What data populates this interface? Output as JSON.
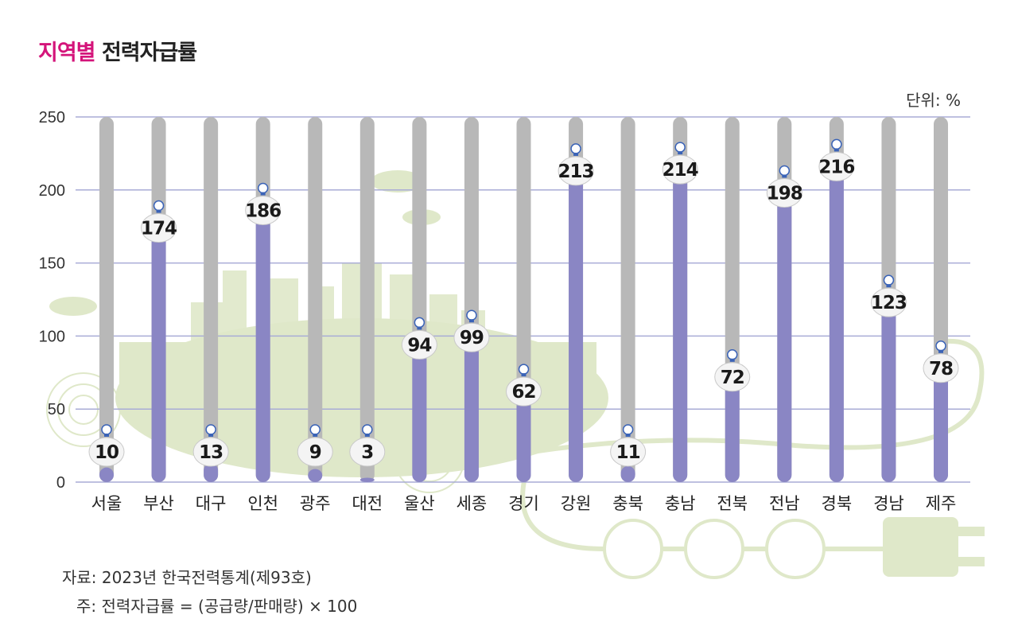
{
  "title_prefix": "지역별",
  "title_main": "전력자급률",
  "unit_label": "단위: %",
  "notes": {
    "source": "자료: 2023년 한국전력통계(제93호)",
    "formula": "주: 전력자급률 = (공급량/판매량) × 100"
  },
  "colors": {
    "accent": "#d4147a",
    "bar_fill": "#8a86c4",
    "bar_track": "#b8b8b8",
    "grid": "#a9acd6",
    "background_art": "#dfe8c9"
  },
  "chart_data": {
    "type": "bar",
    "categories": [
      "서울",
      "부산",
      "대구",
      "인천",
      "광주",
      "대전",
      "울산",
      "세종",
      "경기",
      "강원",
      "충북",
      "충남",
      "전북",
      "전남",
      "경북",
      "경남",
      "제주"
    ],
    "values": [
      10,
      174,
      13,
      186,
      9,
      3,
      94,
      99,
      62,
      213,
      11,
      214,
      72,
      198,
      216,
      123,
      78
    ],
    "ylim": [
      0,
      250
    ],
    "yticks": [
      0,
      50,
      100,
      150,
      200,
      250
    ],
    "grid": true,
    "legend": "none"
  }
}
